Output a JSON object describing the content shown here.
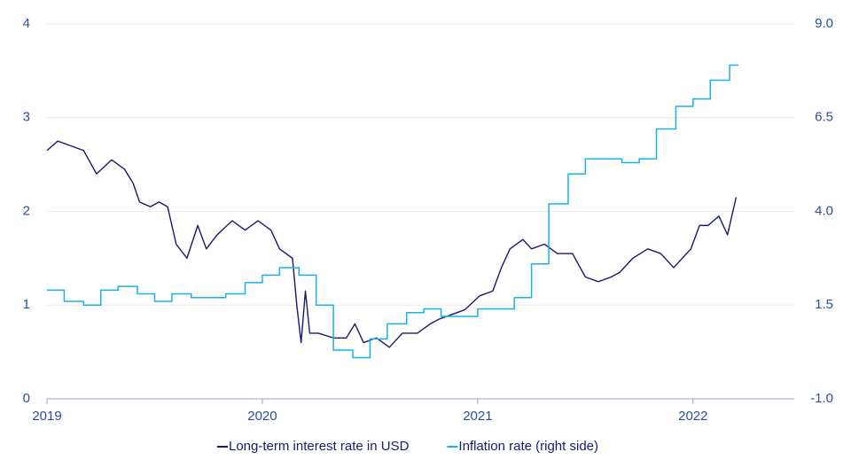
{
  "chart_data": {
    "type": "line",
    "xlim": [
      2019,
      2022.47
    ],
    "xticks": [
      2019,
      2020,
      2021,
      2022
    ],
    "ylim": [
      0,
      4
    ],
    "yticks": [
      0,
      1,
      2,
      3,
      4
    ],
    "y2lim": [
      -1,
      9
    ],
    "y2ticks": [
      {
        "value": -1,
        "label": "-1.0"
      },
      {
        "value": 1.5,
        "label": "1.5"
      },
      {
        "value": 4,
        "label": "4.0"
      },
      {
        "value": 6.5,
        "label": "6.5"
      },
      {
        "value": 9,
        "label": "9.0"
      }
    ],
    "grid": true,
    "legend": "bottom",
    "series": [
      {
        "name": "Long-term interest rate in USD",
        "color": "#1a1a6e",
        "x": [
          2019.0,
          2019.05,
          2019.11,
          2019.17,
          2019.23,
          2019.3,
          2019.36,
          2019.4,
          2019.43,
          2019.48,
          2019.52,
          2019.56,
          2019.6,
          2019.65,
          2019.7,
          2019.74,
          2019.79,
          2019.86,
          2019.92,
          2019.98,
          2020.04,
          2020.08,
          2020.14,
          2020.16,
          2020.18,
          2020.2,
          2020.22,
          2020.26,
          2020.33,
          2020.39,
          2020.43,
          2020.47,
          2020.53,
          2020.59,
          2020.65,
          2020.72,
          2020.78,
          2020.82,
          2020.88,
          2020.94,
          2021.01,
          2021.07,
          2021.11,
          2021.15,
          2021.21,
          2021.25,
          2021.31,
          2021.37,
          2021.44,
          2021.5,
          2021.56,
          2021.62,
          2021.66,
          2021.72,
          2021.79,
          2021.85,
          2021.91,
          2021.95,
          2021.99,
          2022.03,
          2022.07,
          2022.12,
          2022.16,
          2022.18,
          2022.2
        ],
        "values": [
          2.65,
          2.75,
          2.7,
          2.65,
          2.4,
          2.55,
          2.45,
          2.3,
          2.1,
          2.05,
          2.1,
          2.05,
          1.65,
          1.5,
          1.85,
          1.6,
          1.75,
          1.9,
          1.8,
          1.9,
          1.8,
          1.6,
          1.5,
          1.0,
          0.6,
          1.15,
          0.7,
          0.7,
          0.65,
          0.65,
          0.8,
          0.6,
          0.65,
          0.55,
          0.7,
          0.7,
          0.8,
          0.85,
          0.9,
          0.95,
          1.1,
          1.15,
          1.4,
          1.6,
          1.7,
          1.6,
          1.65,
          1.55,
          1.55,
          1.3,
          1.25,
          1.3,
          1.35,
          1.5,
          1.6,
          1.55,
          1.4,
          1.5,
          1.6,
          1.85,
          1.85,
          1.95,
          1.75,
          1.95,
          2.15
        ]
      },
      {
        "name": "Inflation rate (right side)",
        "color": "#1ab0e8",
        "axis": "y2",
        "step": true,
        "x": [
          2019.0,
          2019.08,
          2019.17,
          2019.25,
          2019.33,
          2019.42,
          2019.5,
          2019.58,
          2019.67,
          2019.75,
          2019.83,
          2019.92,
          2020.0,
          2020.08,
          2020.17,
          2020.25,
          2020.33,
          2020.42,
          2020.5,
          2020.58,
          2020.67,
          2020.75,
          2020.83,
          2020.92,
          2021.0,
          2021.08,
          2021.17,
          2021.25,
          2021.33,
          2021.42,
          2021.5,
          2021.58,
          2021.67,
          2021.75,
          2021.83,
          2021.92,
          2022.0,
          2022.08,
          2022.17
        ],
        "values": [
          1.9,
          1.6,
          1.5,
          1.9,
          2.0,
          1.8,
          1.6,
          1.8,
          1.7,
          1.7,
          1.8,
          2.1,
          2.3,
          2.5,
          2.3,
          1.5,
          0.3,
          0.1,
          0.6,
          1.0,
          1.3,
          1.4,
          1.2,
          1.2,
          1.4,
          1.4,
          1.7,
          2.6,
          4.2,
          5.0,
          5.4,
          5.4,
          5.3,
          5.4,
          6.2,
          6.8,
          7.0,
          7.5,
          7.9
        ]
      }
    ]
  }
}
